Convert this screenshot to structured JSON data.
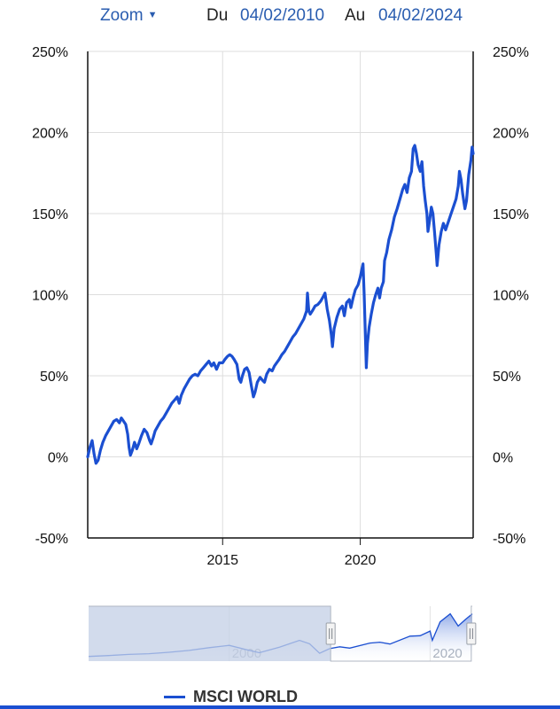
{
  "toolbar": {
    "zoom_label": "Zoom",
    "from_label": "Du",
    "from_date": "04/02/2010",
    "to_label": "Au",
    "to_date": "04/02/2024"
  },
  "colors": {
    "series": "#1b4fd1",
    "grid": "#dddddd",
    "axis": "#111111",
    "navigator_mask": "#c3cfe6"
  },
  "icons": {
    "zoom_caret": "caret-down-icon",
    "handle": "grip-handle-icon"
  },
  "chart_data": {
    "type": "line",
    "title": "",
    "xlabel": "",
    "ylabel": "",
    "ylim": [
      -50,
      250
    ],
    "y_ticks": [
      -50,
      0,
      50,
      100,
      150,
      200,
      250
    ],
    "y_tick_labels": [
      "-50%",
      "0%",
      "50%",
      "100%",
      "150%",
      "200%",
      "250%"
    ],
    "x_ticks": [
      2015,
      2020
    ],
    "x_tick_labels": [
      "2015",
      "2020"
    ],
    "xlim": [
      2010.1,
      2024.1
    ],
    "grid": true,
    "legend": "bottom",
    "series": [
      {
        "name": "MSCI WORLD",
        "color": "#1b4fd1",
        "points": [
          [
            2010.1,
            0
          ],
          [
            2010.18,
            6
          ],
          [
            2010.26,
            10
          ],
          [
            2010.33,
            2
          ],
          [
            2010.4,
            -4
          ],
          [
            2010.48,
            -2
          ],
          [
            2010.56,
            4
          ],
          [
            2010.65,
            9
          ],
          [
            2010.75,
            13
          ],
          [
            2010.85,
            16
          ],
          [
            2010.95,
            19
          ],
          [
            2011.05,
            22
          ],
          [
            2011.15,
            23
          ],
          [
            2011.25,
            21
          ],
          [
            2011.32,
            24
          ],
          [
            2011.4,
            22
          ],
          [
            2011.48,
            20
          ],
          [
            2011.55,
            14
          ],
          [
            2011.6,
            6
          ],
          [
            2011.65,
            1
          ],
          [
            2011.72,
            4
          ],
          [
            2011.8,
            9
          ],
          [
            2011.88,
            5
          ],
          [
            2011.95,
            8
          ],
          [
            2012.05,
            13
          ],
          [
            2012.15,
            17
          ],
          [
            2012.25,
            15
          ],
          [
            2012.35,
            10
          ],
          [
            2012.4,
            8
          ],
          [
            2012.48,
            12
          ],
          [
            2012.55,
            16
          ],
          [
            2012.65,
            19
          ],
          [
            2012.75,
            22
          ],
          [
            2012.85,
            24
          ],
          [
            2012.95,
            27
          ],
          [
            2013.05,
            30
          ],
          [
            2013.15,
            33
          ],
          [
            2013.25,
            35
          ],
          [
            2013.35,
            37
          ],
          [
            2013.42,
            33
          ],
          [
            2013.5,
            38
          ],
          [
            2013.6,
            42
          ],
          [
            2013.7,
            45
          ],
          [
            2013.8,
            48
          ],
          [
            2013.9,
            50
          ],
          [
            2014.0,
            51
          ],
          [
            2014.1,
            50
          ],
          [
            2014.2,
            53
          ],
          [
            2014.3,
            55
          ],
          [
            2014.4,
            57
          ],
          [
            2014.5,
            59
          ],
          [
            2014.6,
            56
          ],
          [
            2014.68,
            58
          ],
          [
            2014.78,
            54
          ],
          [
            2014.88,
            58
          ],
          [
            2015.0,
            58
          ],
          [
            2015.08,
            60
          ],
          [
            2015.18,
            62
          ],
          [
            2015.26,
            63
          ],
          [
            2015.34,
            62
          ],
          [
            2015.42,
            60
          ],
          [
            2015.52,
            57
          ],
          [
            2015.6,
            48
          ],
          [
            2015.66,
            46
          ],
          [
            2015.72,
            50
          ],
          [
            2015.8,
            54
          ],
          [
            2015.88,
            55
          ],
          [
            2015.96,
            52
          ],
          [
            2016.04,
            44
          ],
          [
            2016.12,
            37
          ],
          [
            2016.18,
            40
          ],
          [
            2016.26,
            46
          ],
          [
            2016.36,
            49
          ],
          [
            2016.46,
            47
          ],
          [
            2016.52,
            46
          ],
          [
            2016.6,
            51
          ],
          [
            2016.7,
            54
          ],
          [
            2016.8,
            53
          ],
          [
            2016.88,
            56
          ],
          [
            2016.96,
            58
          ],
          [
            2017.05,
            60
          ],
          [
            2017.15,
            63
          ],
          [
            2017.25,
            65
          ],
          [
            2017.35,
            68
          ],
          [
            2017.45,
            71
          ],
          [
            2017.55,
            74
          ],
          [
            2017.65,
            76
          ],
          [
            2017.75,
            79
          ],
          [
            2017.85,
            82
          ],
          [
            2017.95,
            85
          ],
          [
            2018.05,
            90
          ],
          [
            2018.08,
            101
          ],
          [
            2018.13,
            90
          ],
          [
            2018.18,
            88
          ],
          [
            2018.26,
            90
          ],
          [
            2018.36,
            93
          ],
          [
            2018.46,
            94
          ],
          [
            2018.56,
            96
          ],
          [
            2018.66,
            99
          ],
          [
            2018.72,
            101
          ],
          [
            2018.8,
            91
          ],
          [
            2018.88,
            84
          ],
          [
            2018.95,
            75
          ],
          [
            2018.99,
            68
          ],
          [
            2019.05,
            79
          ],
          [
            2019.15,
            86
          ],
          [
            2019.25,
            91
          ],
          [
            2019.35,
            93
          ],
          [
            2019.42,
            87
          ],
          [
            2019.5,
            95
          ],
          [
            2019.6,
            97
          ],
          [
            2019.66,
            92
          ],
          [
            2019.74,
            98
          ],
          [
            2019.82,
            103
          ],
          [
            2019.92,
            106
          ],
          [
            2020.0,
            111
          ],
          [
            2020.06,
            116
          ],
          [
            2020.1,
            119
          ],
          [
            2020.14,
            100
          ],
          [
            2020.19,
            72
          ],
          [
            2020.22,
            55
          ],
          [
            2020.26,
            70
          ],
          [
            2020.32,
            80
          ],
          [
            2020.4,
            88
          ],
          [
            2020.48,
            95
          ],
          [
            2020.56,
            100
          ],
          [
            2020.64,
            104
          ],
          [
            2020.7,
            98
          ],
          [
            2020.76,
            104
          ],
          [
            2020.84,
            108
          ],
          [
            2020.88,
            121
          ],
          [
            2020.96,
            126
          ],
          [
            2021.04,
            134
          ],
          [
            2021.14,
            140
          ],
          [
            2021.24,
            148
          ],
          [
            2021.34,
            153
          ],
          [
            2021.44,
            159
          ],
          [
            2021.54,
            165
          ],
          [
            2021.62,
            168
          ],
          [
            2021.7,
            163
          ],
          [
            2021.78,
            172
          ],
          [
            2021.86,
            176
          ],
          [
            2021.92,
            190
          ],
          [
            2021.98,
            192
          ],
          [
            2022.04,
            187
          ],
          [
            2022.1,
            180
          ],
          [
            2022.18,
            176
          ],
          [
            2022.24,
            182
          ],
          [
            2022.3,
            167
          ],
          [
            2022.36,
            158
          ],
          [
            2022.42,
            150
          ],
          [
            2022.46,
            139
          ],
          [
            2022.52,
            146
          ],
          [
            2022.58,
            154
          ],
          [
            2022.64,
            150
          ],
          [
            2022.7,
            138
          ],
          [
            2022.76,
            125
          ],
          [
            2022.79,
            118
          ],
          [
            2022.86,
            131
          ],
          [
            2022.94,
            139
          ],
          [
            2023.02,
            144
          ],
          [
            2023.1,
            140
          ],
          [
            2023.18,
            144
          ],
          [
            2023.28,
            149
          ],
          [
            2023.38,
            154
          ],
          [
            2023.48,
            159
          ],
          [
            2023.56,
            167
          ],
          [
            2023.6,
            176
          ],
          [
            2023.66,
            171
          ],
          [
            2023.72,
            162
          ],
          [
            2023.8,
            153
          ],
          [
            2023.86,
            158
          ],
          [
            2023.94,
            174
          ],
          [
            2024.02,
            183
          ],
          [
            2024.06,
            191
          ],
          [
            2024.1,
            187
          ]
        ]
      }
    ]
  },
  "navigator": {
    "x_tick_labels": [
      "2000",
      "2020"
    ],
    "x_ticks": [
      2000,
      2020
    ],
    "xlim": [
      1986.0,
      2024.2
    ],
    "selection": [
      2010.1,
      2024.1
    ],
    "preview": [
      [
        1986.0,
        0
      ],
      [
        1988,
        4
      ],
      [
        1990,
        9
      ],
      [
        1992,
        12
      ],
      [
        1994,
        18
      ],
      [
        1996,
        26
      ],
      [
        1998,
        38
      ],
      [
        2000,
        48
      ],
      [
        2002,
        26
      ],
      [
        2003,
        16
      ],
      [
        2005,
        40
      ],
      [
        2007,
        70
      ],
      [
        2008,
        55
      ],
      [
        2009,
        14
      ],
      [
        2010,
        34
      ],
      [
        2011,
        42
      ],
      [
        2012,
        36
      ],
      [
        2014,
        58
      ],
      [
        2015,
        62
      ],
      [
        2016,
        54
      ],
      [
        2018,
        88
      ],
      [
        2019,
        90
      ],
      [
        2020,
        110
      ],
      [
        2020.22,
        70
      ],
      [
        2021,
        150
      ],
      [
        2022,
        185
      ],
      [
        2022.8,
        132
      ],
      [
        2023.5,
        160
      ],
      [
        2024.2,
        185
      ]
    ]
  },
  "legend": {
    "label": "MSCI WORLD"
  }
}
